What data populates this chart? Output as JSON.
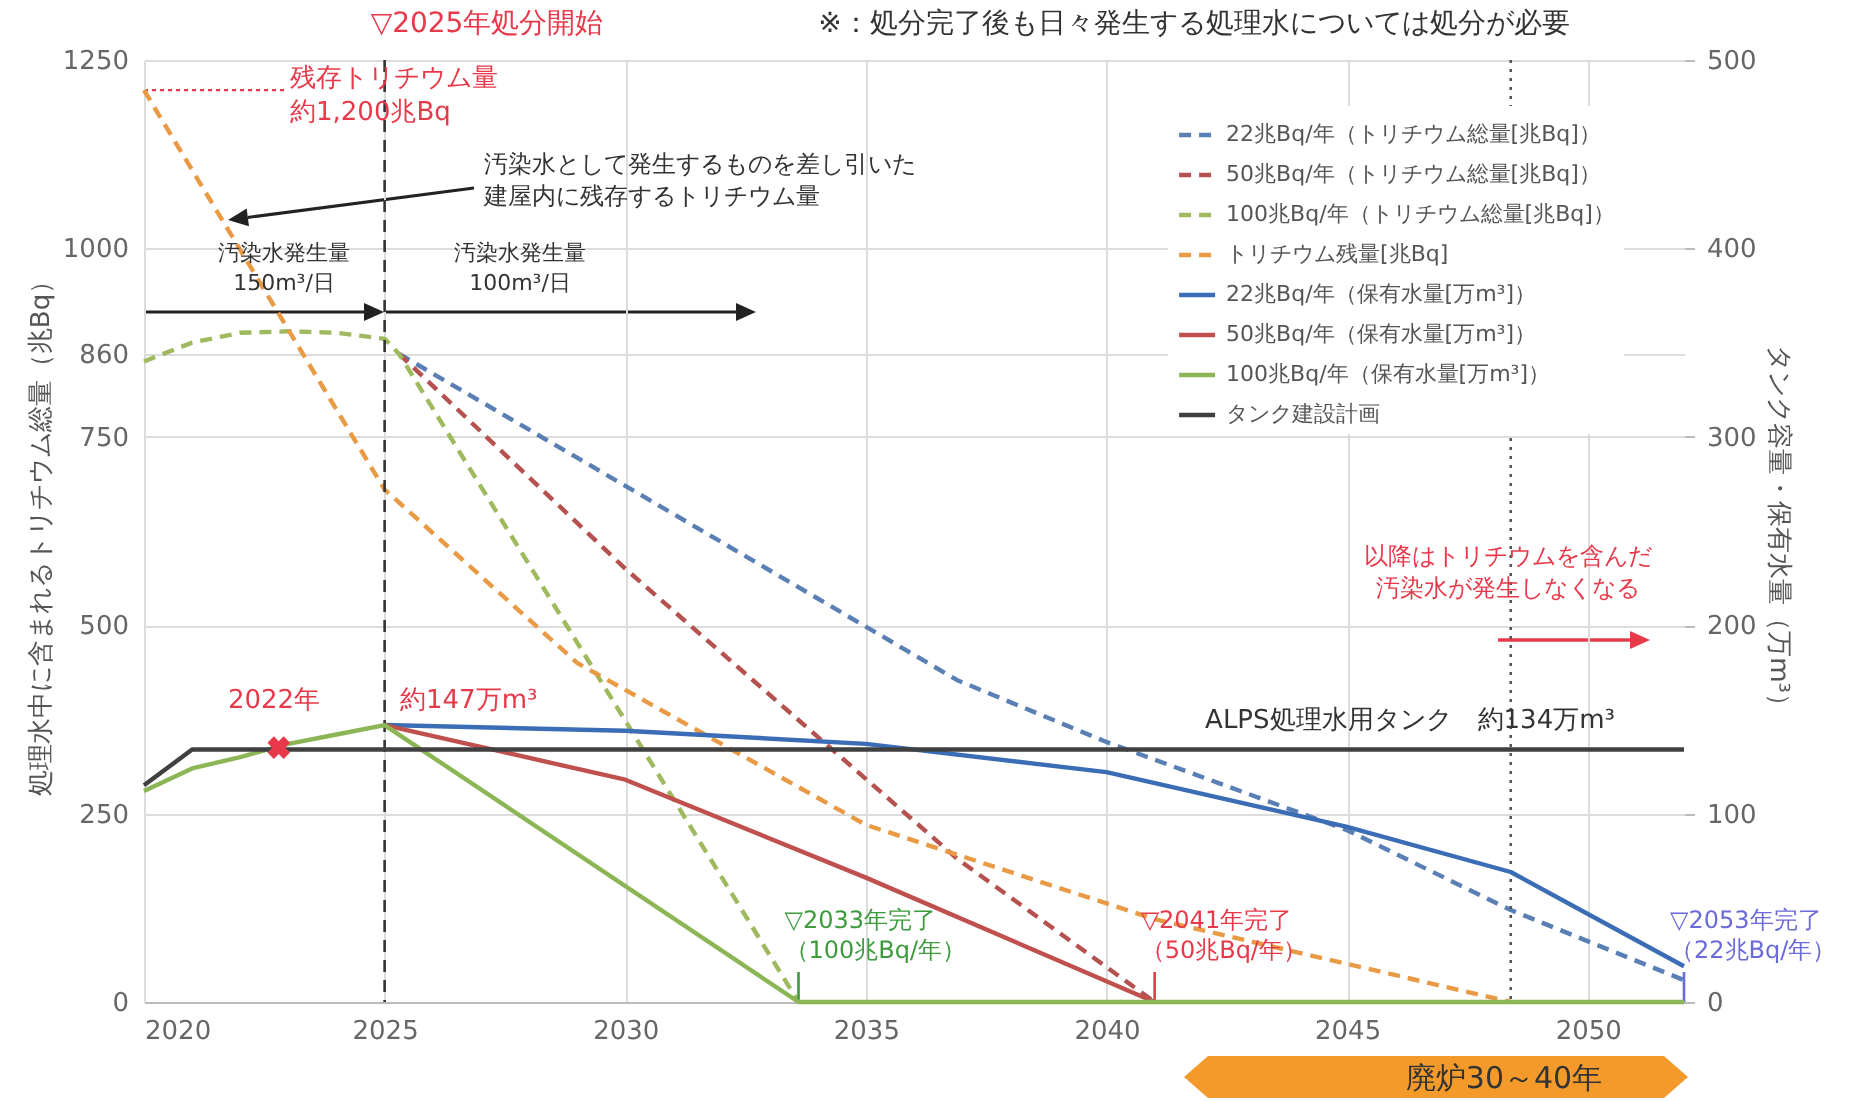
{
  "chart_data": {
    "type": "line",
    "xlabel": null,
    "ylabel": "処理水中に含まれるトリチウム総量（兆Bq）",
    "y2label": "タンク容量・保有水量（万m³）",
    "xlim": [
      2020,
      2052
    ],
    "xticks": [
      2020,
      2025,
      2030,
      2035,
      2040,
      2045,
      2050
    ],
    "ylim": [
      0,
      1250
    ],
    "yticks": [
      0,
      250,
      500,
      750,
      860,
      1000,
      1250
    ],
    "y2lim": [
      0,
      500
    ],
    "y2ticks": [
      0,
      100,
      200,
      300,
      400,
      500
    ],
    "grid": true,
    "legend": "top right",
    "series": [
      {
        "name": "22兆Bq/年（トリチウム総量[兆Bq]）",
        "color": "#5a7fb5",
        "line_style": "dashed",
        "x": [
          2025.3,
          2030,
          2036.9,
          2040,
          2045,
          2048.4,
          2052
        ],
        "values": [
          860,
          685,
          427,
          345,
          228,
          122,
          29
        ]
      },
      {
        "name": "50兆Bq/年（トリチウム総量[兆Bq]）",
        "color": "#b5524f",
        "line_style": "dashed",
        "x": [
          2025.3,
          2030,
          2036.9,
          2041
        ],
        "values": [
          860,
          575,
          190,
          0
        ]
      },
      {
        "name": "100兆Bq/年（トリチウム総量[兆Bq]）",
        "color": "#9fba5e",
        "line_style": "dashed",
        "x": [
          2020,
          2021,
          2022,
          2023,
          2024,
          2025,
          2025.3,
          2029,
          2033.6
        ],
        "values": [
          850,
          875,
          888,
          890,
          888,
          880,
          860,
          477,
          0
        ]
      },
      {
        "name": "トリチウム残量[兆Bq]",
        "color": "#e99a45",
        "line_style": "dashed",
        "x": [
          2020,
          2025,
          2029,
          2035,
          2041,
          2048.4
        ],
        "values": [
          1210,
          680,
          450,
          235,
          110,
          0
        ]
      },
      {
        "name": "22兆Bq/年（保有水量[万m³]）",
        "color": "#3a6db5",
        "line_style": "solid",
        "axis": "y2",
        "x": [
          2025,
          2030,
          2035,
          2040,
          2045,
          2048.4,
          2052
        ],
        "values": [
          147,
          144,
          137,
          122,
          93,
          69,
          19
        ]
      },
      {
        "name": "50兆Bq/年（保有水量[万m³]）",
        "color": "#c0504d",
        "line_style": "solid",
        "axis": "y2",
        "x": [
          2025,
          2030,
          2035,
          2041
        ],
        "values": [
          147,
          118,
          66,
          0
        ]
      },
      {
        "name": "100兆Bq/年（保有水量[万m³]）",
        "color": "#8cb556",
        "line_style": "solid",
        "axis": "y2",
        "x": [
          2020,
          2021,
          2022,
          2023,
          2024,
          2025,
          2033.6,
          2052
        ],
        "values": [
          112,
          124,
          130,
          137,
          142,
          147,
          0,
          0
        ]
      },
      {
        "name": "タンク建設計画",
        "color": "#404040",
        "line_style": "solid",
        "axis": "y2",
        "x": [
          2020,
          2021,
          2052
        ],
        "values": [
          115,
          134,
          134
        ]
      },
      {
        "type": "scatter",
        "color": "#e8394a",
        "marker": "cross",
        "axis": "y2",
        "x": [
          2022.8
        ],
        "values": [
          135
        ]
      }
    ],
    "ref_lines": [
      {
        "axis": "x",
        "value": 2025,
        "label": "▽2025年処分開始",
        "color": "#333333",
        "line_style": "dashed"
      },
      {
        "axis": "x",
        "value": 2033.6,
        "label": "▽2033年完了（100兆Bq/年）",
        "color": "#3d9a3d",
        "line_style": "solid"
      },
      {
        "axis": "x",
        "value": 2041,
        "label": "▽2041年完了（50兆Bq/年）",
        "color": "#e8394a",
        "line_style": "solid"
      },
      {
        "axis": "x",
        "value": 2052,
        "label": "▽2053年完了（22兆Bq/年）",
        "color": "#6a6ad8",
        "line_style": "solid"
      },
      {
        "axis": "x",
        "value": 2048.4,
        "color": "#555555",
        "line_style": "dotted"
      }
    ],
    "annotations": [
      "※：処分完了後も日々発生する処理水については処分が必要",
      {
        "text": "残存トリチウム量約1,200兆Bq",
        "x": 2020,
        "y": 1210
      },
      "汚染水として発生するものを差し引いた建屋内に残存するトリチウム量",
      "汚染水発生量\n150m³/日",
      "汚染水発生量\n100m³/日",
      "2022年",
      "約147万m³",
      "ALPS処理水用タンク　約134万m³",
      "以降はトリチウムを含んだ汚染水が発生しなくなる",
      "廃炉30～40年"
    ]
  }
}
